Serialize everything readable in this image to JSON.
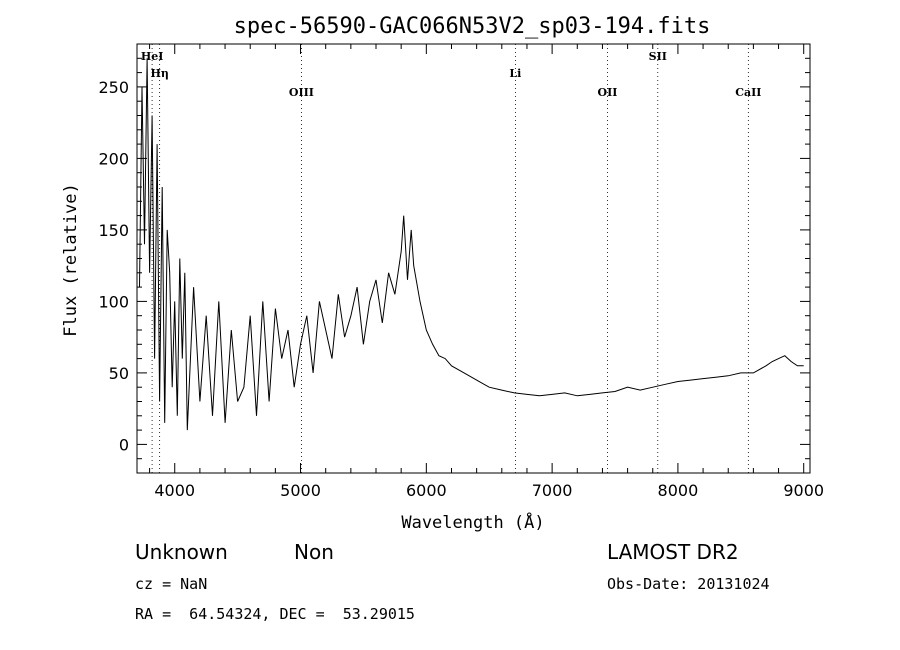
{
  "chart_data": {
    "type": "line",
    "title": "spec-56590-GAC066N53V2_sp03-194.fits",
    "xlabel": "Wavelength (Å)",
    "ylabel": "Flux (relative)",
    "xlim": [
      3700,
      9050
    ],
    "ylim": [
      -20,
      280
    ],
    "xticks": [
      4000,
      5000,
      6000,
      7000,
      8000,
      9000
    ],
    "yticks": [
      0,
      50,
      100,
      150,
      200,
      250
    ],
    "grid": false,
    "line_markers": [
      {
        "name": "HeI",
        "x": 3820
      },
      {
        "name": "Hη",
        "x": 3880
      },
      {
        "name": "OIII",
        "x": 5007
      },
      {
        "name": "Li",
        "x": 6708
      },
      {
        "name": "OII",
        "x": 7440
      },
      {
        "name": "SII",
        "x": 7840
      },
      {
        "name": "CaII",
        "x": 8560
      }
    ],
    "series": [
      {
        "x": [
          3720,
          3740,
          3760,
          3780,
          3800,
          3820,
          3840,
          3860,
          3880,
          3900,
          3920,
          3940,
          3960,
          3980,
          4000,
          4020,
          4040,
          4060,
          4080,
          4100,
          4150,
          4200,
          4250,
          4300,
          4350,
          4400,
          4450,
          4500,
          4550,
          4600,
          4650,
          4700,
          4750,
          4800,
          4850,
          4900,
          4950,
          5000,
          5050,
          5100,
          5150,
          5200,
          5250,
          5300,
          5350,
          5400,
          5450,
          5500,
          5550,
          5600,
          5650,
          5700,
          5750,
          5800,
          5820,
          5850,
          5880,
          5900,
          5950,
          6000,
          6050,
          6100,
          6150,
          6200,
          6300,
          6400,
          6500,
          6600,
          6700,
          6800,
          6900,
          7000,
          7100,
          7200,
          7300,
          7400,
          7500,
          7600,
          7700,
          7800,
          7900,
          8000,
          8100,
          8200,
          8300,
          8400,
          8500,
          8600,
          8700,
          8750,
          8800,
          8850,
          8900,
          8950,
          9000
        ],
        "values": [
          110,
          250,
          140,
          270,
          120,
          230,
          60,
          210,
          30,
          180,
          15,
          150,
          120,
          40,
          100,
          20,
          130,
          60,
          120,
          10,
          110,
          30,
          90,
          20,
          100,
          15,
          80,
          30,
          40,
          90,
          20,
          100,
          30,
          95,
          60,
          80,
          40,
          70,
          90,
          50,
          100,
          80,
          60,
          105,
          75,
          90,
          110,
          70,
          100,
          115,
          85,
          120,
          105,
          135,
          160,
          115,
          150,
          125,
          100,
          80,
          70,
          62,
          60,
          55,
          50,
          45,
          40,
          38,
          36,
          35,
          34,
          35,
          36,
          34,
          35,
          36,
          37,
          40,
          38,
          40,
          42,
          44,
          45,
          46,
          47,
          48,
          50,
          50,
          55,
          58,
          60,
          62,
          58,
          55,
          55
        ]
      }
    ]
  },
  "info": {
    "object_class": "Unknown",
    "subclass": "Non",
    "survey": "LAMOST DR2",
    "cz": "cz = NaN",
    "obs_date": "Obs-Date: 20131024",
    "coords": "RA =  64.54324, DEC =  53.29015"
  }
}
